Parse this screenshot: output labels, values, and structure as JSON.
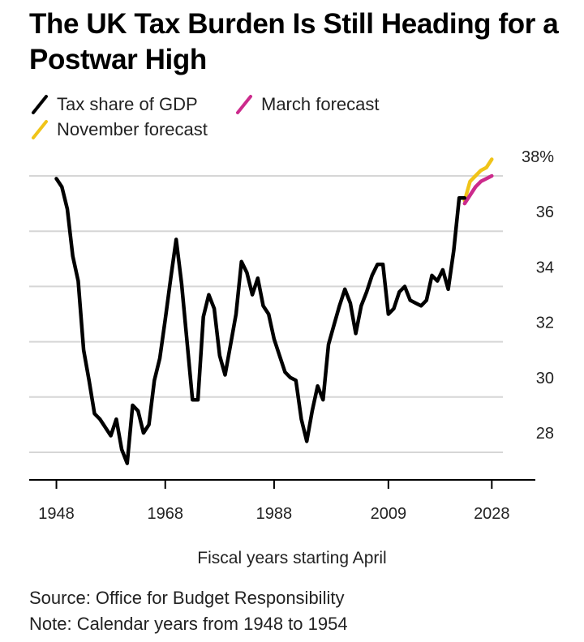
{
  "chart_data": {
    "type": "line",
    "title": "The UK Tax Burden Is Still Heading for a Postwar High",
    "xlabel": "Fiscal years starting April",
    "ylabel": "",
    "ylim": [
      26,
      38
    ],
    "xlim": [
      1943,
      2036
    ],
    "y_ticks": [
      "38%",
      "36",
      "34",
      "32",
      "30",
      "28"
    ],
    "y_tick_values": [
      38,
      36,
      34,
      32,
      30,
      28
    ],
    "x_ticks": [
      "1948",
      "1968",
      "1988",
      "2009",
      "2028"
    ],
    "x_tick_values": [
      1948,
      1968,
      1988,
      2009,
      2028
    ],
    "series": [
      {
        "name": "Tax share of GDP",
        "color": "#000000",
        "x": [
          1948,
          1949,
          1950,
          1951,
          1952,
          1953,
          1954,
          1955,
          1956,
          1957,
          1958,
          1959,
          1960,
          1961,
          1962,
          1963,
          1964,
          1965,
          1966,
          1967,
          1968,
          1969,
          1970,
          1971,
          1972,
          1973,
          1974,
          1975,
          1976,
          1977,
          1978,
          1979,
          1980,
          1981,
          1982,
          1983,
          1984,
          1985,
          1986,
          1987,
          1988,
          1989,
          1990,
          1991,
          1992,
          1993,
          1994,
          1995,
          1996,
          1997,
          1998,
          1999,
          2000,
          2001,
          2002,
          2003,
          2004,
          2005,
          2006,
          2007,
          2008,
          2009,
          2010,
          2011,
          2012,
          2013,
          2014,
          2015,
          2016,
          2017,
          2018,
          2019,
          2020,
          2021,
          2022,
          2023
        ],
        "values": [
          36.9,
          36.6,
          35.8,
          34.1,
          33.2,
          30.7,
          29.6,
          28.4,
          28.2,
          27.9,
          27.6,
          28.2,
          27.1,
          26.6,
          28.7,
          28.5,
          27.7,
          28.0,
          29.6,
          30.4,
          31.8,
          33.3,
          34.7,
          33.1,
          31.0,
          28.9,
          28.9,
          31.9,
          32.7,
          32.2,
          30.5,
          29.8,
          30.9,
          32.0,
          33.9,
          33.5,
          32.7,
          33.3,
          32.3,
          32.0,
          31.1,
          30.5,
          29.9,
          29.7,
          29.6,
          28.2,
          27.4,
          28.5,
          29.4,
          28.9,
          30.9,
          31.6,
          32.3,
          32.9,
          32.4,
          31.3,
          32.3,
          32.8,
          33.4,
          33.8,
          33.8,
          32.0,
          32.2,
          32.8,
          33.0,
          32.5,
          32.4,
          32.3,
          32.5,
          33.4,
          33.2,
          33.6,
          32.9,
          34.3,
          36.2,
          36.2
        ]
      },
      {
        "name": "March forecast",
        "color": "#cc2a8c",
        "x": [
          2023,
          2024,
          2025,
          2026,
          2027,
          2028
        ],
        "values": [
          36.0,
          36.3,
          36.6,
          36.8,
          36.9,
          37.0
        ]
      },
      {
        "name": "November forecast",
        "color": "#f0c419",
        "x": [
          2023,
          2024,
          2025,
          2026,
          2027,
          2028
        ],
        "values": [
          36.1,
          36.8,
          37.0,
          37.2,
          37.3,
          37.6
        ]
      }
    ]
  },
  "legend": {
    "items": [
      {
        "label": "Tax share of GDP",
        "color": "#000000"
      },
      {
        "label": "March forecast",
        "color": "#cc2a8c"
      },
      {
        "label": "November forecast",
        "color": "#f0c419"
      }
    ]
  },
  "footer": {
    "source": "Source: Office for Budget Responsibility",
    "note": "Note: Calendar years from 1948 to 1954"
  }
}
